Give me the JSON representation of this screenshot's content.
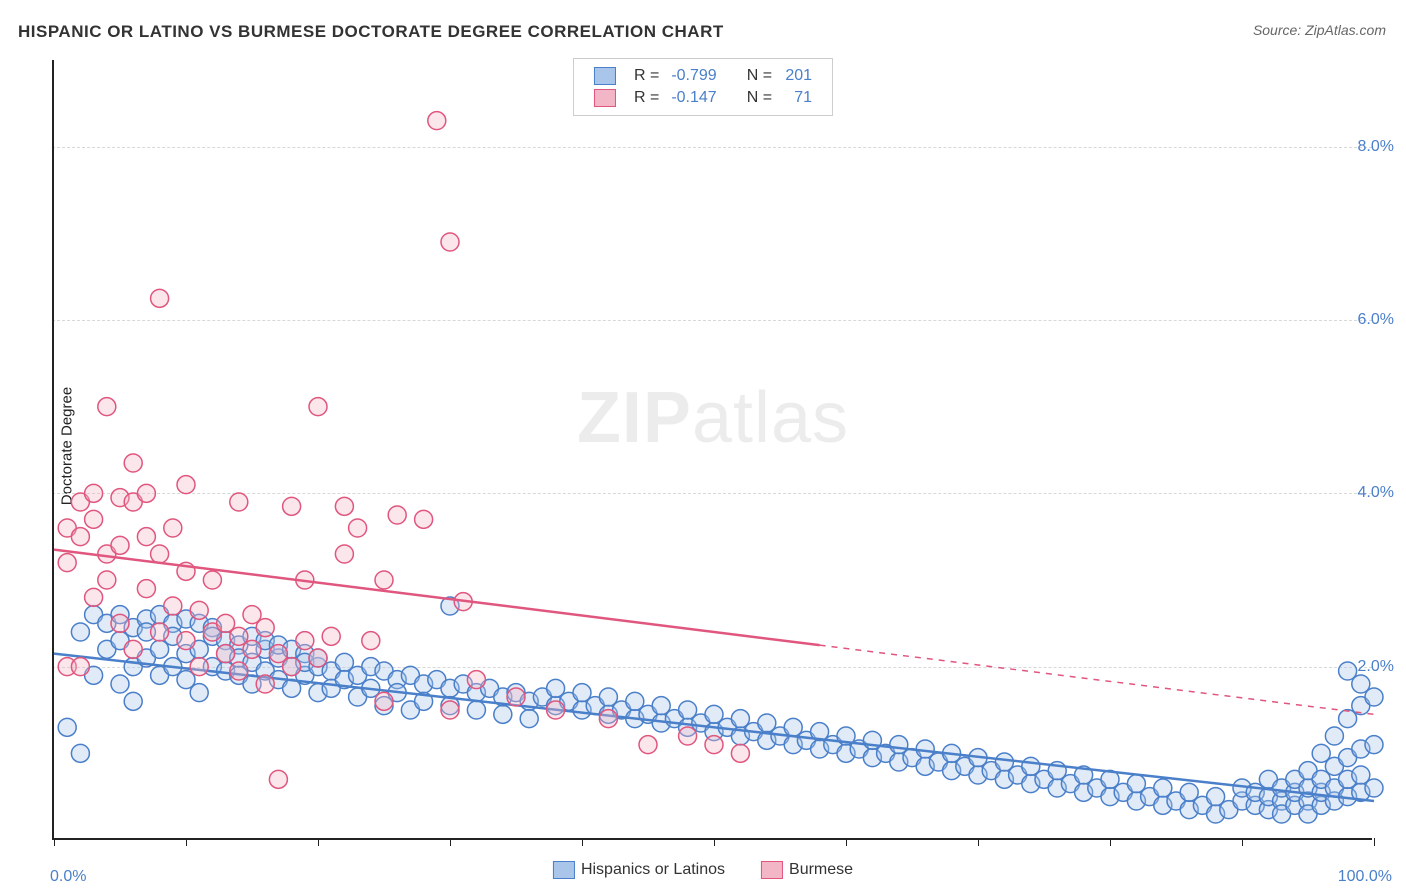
{
  "title": "HISPANIC OR LATINO VS BURMESE DOCTORATE DEGREE CORRELATION CHART",
  "source_label": "Source: ZipAtlas.com",
  "y_axis_label": "Doctorate Degree",
  "watermark": {
    "bold": "ZIP",
    "rest": "atlas"
  },
  "chart": {
    "type": "scatter",
    "xlim": [
      0,
      100
    ],
    "ylim": [
      0,
      9
    ],
    "x_ticks_labeled": [
      {
        "v": 0,
        "label": "0.0%"
      },
      {
        "v": 100,
        "label": "100.0%"
      }
    ],
    "x_minor_ticks": [
      0,
      10,
      20,
      30,
      40,
      50,
      60,
      70,
      80,
      90,
      100
    ],
    "y_grid": [
      {
        "v": 2.0,
        "label": "2.0%"
      },
      {
        "v": 4.0,
        "label": "4.0%"
      },
      {
        "v": 6.0,
        "label": "6.0%"
      },
      {
        "v": 8.0,
        "label": "8.0%"
      }
    ],
    "background_color": "#ffffff",
    "grid_color": "#d8d8d8",
    "marker_radius": 9,
    "marker_stroke_width": 1.5,
    "marker_fill_opacity": 0.35,
    "series": [
      {
        "name": "Hispanics or Latinos",
        "color_stroke": "#4a7fc9",
        "color_fill": "#a9c5ea",
        "r_stat": "-0.799",
        "n_stat": "201",
        "regression": {
          "x0": 0,
          "y0": 2.15,
          "x1": 100,
          "y1": 0.45,
          "solid_until_x": 100
        },
        "points": [
          [
            1,
            1.3
          ],
          [
            2,
            1.0
          ],
          [
            2,
            2.4
          ],
          [
            3,
            2.6
          ],
          [
            3,
            1.9
          ],
          [
            4,
            2.5
          ],
          [
            4,
            2.2
          ],
          [
            5,
            2.6
          ],
          [
            5,
            1.8
          ],
          [
            5,
            2.3
          ],
          [
            6,
            2.45
          ],
          [
            6,
            2.0
          ],
          [
            6,
            1.6
          ],
          [
            7,
            2.55
          ],
          [
            7,
            2.1
          ],
          [
            7,
            2.4
          ],
          [
            8,
            2.6
          ],
          [
            8,
            2.2
          ],
          [
            8,
            1.9
          ],
          [
            9,
            2.5
          ],
          [
            9,
            2.0
          ],
          [
            9,
            2.35
          ],
          [
            10,
            2.55
          ],
          [
            10,
            2.15
          ],
          [
            10,
            1.85
          ],
          [
            11,
            2.5
          ],
          [
            11,
            2.2
          ],
          [
            11,
            1.7
          ],
          [
            12,
            2.45
          ],
          [
            12,
            2.0
          ],
          [
            12,
            2.35
          ],
          [
            13,
            2.3
          ],
          [
            13,
            1.95
          ],
          [
            13,
            2.15
          ],
          [
            14,
            2.25
          ],
          [
            14,
            1.9
          ],
          [
            14,
            2.1
          ],
          [
            15,
            2.35
          ],
          [
            15,
            1.8
          ],
          [
            15,
            2.05
          ],
          [
            16,
            2.2
          ],
          [
            16,
            1.95
          ],
          [
            16,
            2.3
          ],
          [
            17,
            2.1
          ],
          [
            17,
            1.85
          ],
          [
            17,
            2.25
          ],
          [
            18,
            2.0
          ],
          [
            18,
            2.2
          ],
          [
            18,
            1.75
          ],
          [
            19,
            2.15
          ],
          [
            19,
            1.9
          ],
          [
            19,
            2.05
          ],
          [
            20,
            2.0
          ],
          [
            20,
            1.7
          ],
          [
            20,
            2.1
          ],
          [
            21,
            1.95
          ],
          [
            21,
            1.75
          ],
          [
            22,
            2.05
          ],
          [
            22,
            1.85
          ],
          [
            23,
            1.9
          ],
          [
            23,
            1.65
          ],
          [
            24,
            2.0
          ],
          [
            24,
            1.75
          ],
          [
            25,
            1.95
          ],
          [
            25,
            1.55
          ],
          [
            26,
            1.85
          ],
          [
            26,
            1.7
          ],
          [
            27,
            1.9
          ],
          [
            27,
            1.5
          ],
          [
            28,
            1.8
          ],
          [
            28,
            1.6
          ],
          [
            29,
            1.85
          ],
          [
            30,
            1.75
          ],
          [
            30,
            1.55
          ],
          [
            30,
            2.7
          ],
          [
            31,
            1.8
          ],
          [
            32,
            1.7
          ],
          [
            32,
            1.5
          ],
          [
            33,
            1.75
          ],
          [
            34,
            1.65
          ],
          [
            34,
            1.45
          ],
          [
            35,
            1.7
          ],
          [
            36,
            1.6
          ],
          [
            36,
            1.4
          ],
          [
            37,
            1.65
          ],
          [
            38,
            1.55
          ],
          [
            38,
            1.75
          ],
          [
            39,
            1.6
          ],
          [
            40,
            1.5
          ],
          [
            40,
            1.7
          ],
          [
            41,
            1.55
          ],
          [
            42,
            1.45
          ],
          [
            42,
            1.65
          ],
          [
            43,
            1.5
          ],
          [
            44,
            1.4
          ],
          [
            44,
            1.6
          ],
          [
            45,
            1.45
          ],
          [
            46,
            1.35
          ],
          [
            46,
            1.55
          ],
          [
            47,
            1.4
          ],
          [
            48,
            1.3
          ],
          [
            48,
            1.5
          ],
          [
            49,
            1.35
          ],
          [
            50,
            1.25
          ],
          [
            50,
            1.45
          ],
          [
            51,
            1.3
          ],
          [
            52,
            1.2
          ],
          [
            52,
            1.4
          ],
          [
            53,
            1.25
          ],
          [
            54,
            1.15
          ],
          [
            54,
            1.35
          ],
          [
            55,
            1.2
          ],
          [
            56,
            1.1
          ],
          [
            56,
            1.3
          ],
          [
            57,
            1.15
          ],
          [
            58,
            1.05
          ],
          [
            58,
            1.25
          ],
          [
            59,
            1.1
          ],
          [
            60,
            1.0
          ],
          [
            60,
            1.2
          ],
          [
            61,
            1.05
          ],
          [
            62,
            0.95
          ],
          [
            62,
            1.15
          ],
          [
            63,
            1.0
          ],
          [
            64,
            0.9
          ],
          [
            64,
            1.1
          ],
          [
            65,
            0.95
          ],
          [
            66,
            0.85
          ],
          [
            66,
            1.05
          ],
          [
            67,
            0.9
          ],
          [
            68,
            0.8
          ],
          [
            68,
            1.0
          ],
          [
            69,
            0.85
          ],
          [
            70,
            0.75
          ],
          [
            70,
            0.95
          ],
          [
            71,
            0.8
          ],
          [
            72,
            0.7
          ],
          [
            72,
            0.9
          ],
          [
            73,
            0.75
          ],
          [
            74,
            0.65
          ],
          [
            74,
            0.85
          ],
          [
            75,
            0.7
          ],
          [
            76,
            0.6
          ],
          [
            76,
            0.8
          ],
          [
            77,
            0.65
          ],
          [
            78,
            0.55
          ],
          [
            78,
            0.75
          ],
          [
            79,
            0.6
          ],
          [
            80,
            0.5
          ],
          [
            80,
            0.7
          ],
          [
            81,
            0.55
          ],
          [
            82,
            0.45
          ],
          [
            82,
            0.65
          ],
          [
            83,
            0.5
          ],
          [
            84,
            0.4
          ],
          [
            84,
            0.6
          ],
          [
            85,
            0.45
          ],
          [
            86,
            0.35
          ],
          [
            86,
            0.55
          ],
          [
            87,
            0.4
          ],
          [
            88,
            0.3
          ],
          [
            88,
            0.5
          ],
          [
            89,
            0.35
          ],
          [
            90,
            0.45
          ],
          [
            90,
            0.6
          ],
          [
            91,
            0.4
          ],
          [
            91,
            0.55
          ],
          [
            92,
            0.35
          ],
          [
            92,
            0.5
          ],
          [
            92,
            0.7
          ],
          [
            93,
            0.45
          ],
          [
            93,
            0.6
          ],
          [
            93,
            0.3
          ],
          [
            94,
            0.4
          ],
          [
            94,
            0.55
          ],
          [
            94,
            0.7
          ],
          [
            95,
            0.45
          ],
          [
            95,
            0.6
          ],
          [
            95,
            0.3
          ],
          [
            95,
            0.8
          ],
          [
            96,
            0.4
          ],
          [
            96,
            0.55
          ],
          [
            96,
            0.7
          ],
          [
            96,
            1.0
          ],
          [
            97,
            0.45
          ],
          [
            97,
            0.6
          ],
          [
            97,
            0.85
          ],
          [
            97,
            1.2
          ],
          [
            98,
            0.5
          ],
          [
            98,
            0.7
          ],
          [
            98,
            0.95
          ],
          [
            98,
            1.4
          ],
          [
            98,
            1.95
          ],
          [
            99,
            0.55
          ],
          [
            99,
            0.75
          ],
          [
            99,
            1.05
          ],
          [
            99,
            1.55
          ],
          [
            99,
            1.8
          ],
          [
            100,
            0.6
          ],
          [
            100,
            1.1
          ],
          [
            100,
            1.65
          ]
        ]
      },
      {
        "name": "Burmese",
        "color_stroke": "#e0567e",
        "color_fill": "#f3b6c6",
        "r_stat": "-0.147",
        "n_stat": "71",
        "regression": {
          "x0": 0,
          "y0": 3.35,
          "x1": 100,
          "y1": 1.45,
          "solid_until_x": 58
        },
        "points": [
          [
            1,
            2.0
          ],
          [
            1,
            3.2
          ],
          [
            1,
            3.6
          ],
          [
            2,
            2.0
          ],
          [
            2,
            3.5
          ],
          [
            2,
            3.9
          ],
          [
            3,
            2.8
          ],
          [
            3,
            3.7
          ],
          [
            3,
            4.0
          ],
          [
            4,
            3.0
          ],
          [
            4,
            3.3
          ],
          [
            4,
            5.0
          ],
          [
            5,
            2.5
          ],
          [
            5,
            3.4
          ],
          [
            5,
            3.95
          ],
          [
            6,
            2.2
          ],
          [
            6,
            3.9
          ],
          [
            6,
            4.35
          ],
          [
            7,
            2.9
          ],
          [
            7,
            3.5
          ],
          [
            7,
            4.0
          ],
          [
            8,
            2.4
          ],
          [
            8,
            3.3
          ],
          [
            8,
            6.25
          ],
          [
            9,
            2.7
          ],
          [
            9,
            3.6
          ],
          [
            10,
            2.3
          ],
          [
            10,
            3.1
          ],
          [
            10,
            4.1
          ],
          [
            11,
            2.0
          ],
          [
            11,
            2.65
          ],
          [
            12,
            2.4
          ],
          [
            12,
            3.0
          ],
          [
            13,
            2.15
          ],
          [
            13,
            2.5
          ],
          [
            14,
            1.95
          ],
          [
            14,
            2.35
          ],
          [
            14,
            3.9
          ],
          [
            15,
            2.2
          ],
          [
            15,
            2.6
          ],
          [
            16,
            1.8
          ],
          [
            16,
            2.45
          ],
          [
            17,
            2.15
          ],
          [
            17,
            0.7
          ],
          [
            18,
            2.0
          ],
          [
            18,
            3.85
          ],
          [
            19,
            2.3
          ],
          [
            19,
            3.0
          ],
          [
            20,
            2.1
          ],
          [
            20,
            5.0
          ],
          [
            21,
            2.35
          ],
          [
            22,
            3.3
          ],
          [
            22,
            3.85
          ],
          [
            23,
            3.6
          ],
          [
            24,
            2.3
          ],
          [
            25,
            3.0
          ],
          [
            25,
            1.6
          ],
          [
            26,
            3.75
          ],
          [
            28,
            3.7
          ],
          [
            29,
            8.3
          ],
          [
            30,
            1.5
          ],
          [
            30,
            6.9
          ],
          [
            31,
            2.75
          ],
          [
            32,
            1.85
          ],
          [
            35,
            1.65
          ],
          [
            38,
            1.5
          ],
          [
            42,
            1.4
          ],
          [
            45,
            1.1
          ],
          [
            48,
            1.2
          ],
          [
            50,
            1.1
          ],
          [
            52,
            1.0
          ]
        ]
      }
    ]
  },
  "bottom_legend": [
    {
      "label": "Hispanics or Latinos",
      "fill": "#a9c5ea",
      "stroke": "#4a7fc9"
    },
    {
      "label": "Burmese",
      "fill": "#f3b6c6",
      "stroke": "#e0567e"
    }
  ],
  "stats_legend_headers": {
    "r": "R =",
    "n": "N ="
  }
}
